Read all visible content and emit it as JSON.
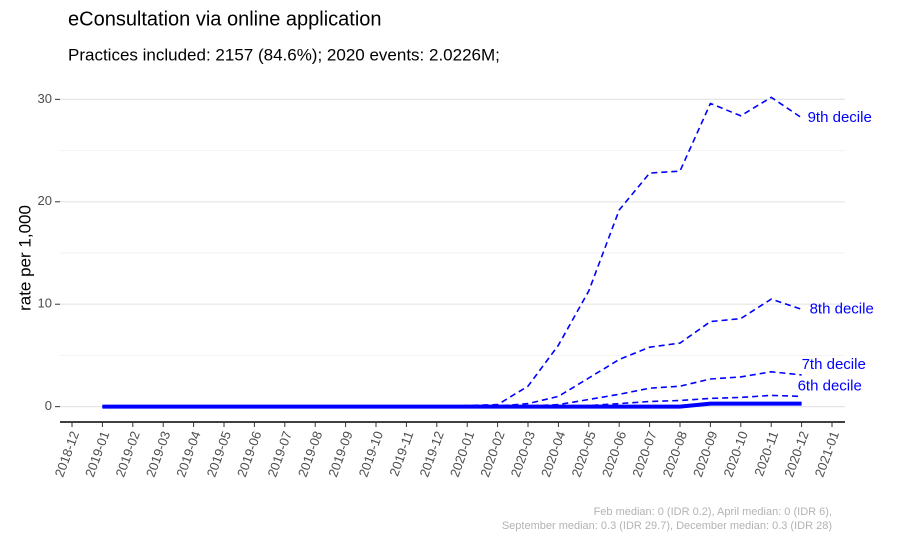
{
  "chart_data": {
    "type": "line",
    "title": "eConsultation via online application",
    "subtitle": "Practices included: 2157 (84.6%); 2020 events: 2.0226M;",
    "y_label": "rate per 1,000",
    "footnote": [
      "Feb median: 0 (IDR 0.2), April median: 0 (IDR 6),",
      "September median: 0.3 (IDR 29.7), December median: 0.3 (IDR 28)"
    ],
    "x": [
      "2019-01",
      "2019-02",
      "2019-03",
      "2019-04",
      "2019-05",
      "2019-06",
      "2019-07",
      "2019-08",
      "2019-09",
      "2019-10",
      "2019-11",
      "2019-12",
      "2020-01",
      "2020-02",
      "2020-03",
      "2020-04",
      "2020-05",
      "2020-06",
      "2020-07",
      "2020-08",
      "2020-09",
      "2020-10",
      "2020-11",
      "2020-12"
    ],
    "xlim": [
      "2018-12",
      "2021-01"
    ],
    "xticks": [
      "2018-12",
      "2019-01",
      "2019-02",
      "2019-03",
      "2019-04",
      "2019-05",
      "2019-06",
      "2019-07",
      "2019-08",
      "2019-09",
      "2019-10",
      "2019-11",
      "2019-12",
      "2020-01",
      "2020-02",
      "2020-03",
      "2020-04",
      "2020-05",
      "2020-06",
      "2020-07",
      "2020-08",
      "2020-09",
      "2020-10",
      "2020-11",
      "2020-12",
      "2021-01"
    ],
    "ylim": [
      -1.5,
      31.5
    ],
    "yticks": [
      0,
      10,
      20,
      30
    ],
    "yminor": [
      5,
      15,
      25
    ],
    "grid": true,
    "series": [
      {
        "name": "9th decile",
        "color": "#0000ff",
        "dashed": true,
        "values": [
          0,
          0,
          0,
          0,
          0,
          0,
          0,
          0,
          0,
          0,
          0,
          0,
          0.1,
          0.2,
          2,
          6,
          11.3,
          19.2,
          22.8,
          23,
          29.6,
          28.4,
          30.2,
          28.2
        ]
      },
      {
        "name": "8th decile",
        "color": "#0000ff",
        "dashed": true,
        "values": [
          0,
          0,
          0,
          0,
          0,
          0,
          0,
          0,
          0,
          0,
          0,
          0,
          0,
          0.05,
          0.3,
          1,
          2.8,
          4.6,
          5.8,
          6.2,
          8.3,
          8.6,
          10.5,
          9.5
        ]
      },
      {
        "name": "7th decile",
        "color": "#0000ff",
        "dashed": true,
        "values": [
          0,
          0,
          0,
          0,
          0,
          0,
          0,
          0,
          0,
          0,
          0,
          0,
          0,
          0,
          0.05,
          0.2,
          0.7,
          1.2,
          1.8,
          2,
          2.7,
          2.9,
          3.4,
          3.1
        ]
      },
      {
        "name": "6th decile",
        "color": "#0000ff",
        "dashed": true,
        "values": [
          0,
          0,
          0,
          0,
          0,
          0,
          0,
          0,
          0,
          0,
          0,
          0,
          0,
          0,
          0,
          0,
          0.1,
          0.3,
          0.5,
          0.6,
          0.8,
          0.9,
          1.1,
          1
        ]
      },
      {
        "color": "#0000ff",
        "dashed": false,
        "values": [
          0,
          0,
          0,
          0,
          0,
          0,
          0,
          0,
          0,
          0,
          0,
          0,
          0,
          0,
          0,
          0,
          0,
          0,
          0,
          0,
          0.3,
          0.3,
          0.3,
          0.3
        ]
      }
    ]
  }
}
